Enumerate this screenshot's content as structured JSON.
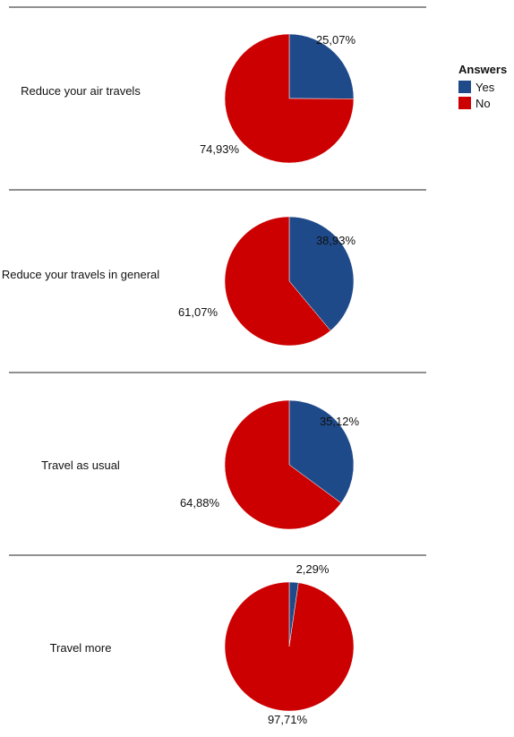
{
  "chart_data": {
    "type": "pie",
    "legend": {
      "title": "Answers",
      "position": "top-right",
      "entries": [
        {
          "label": "Yes",
          "color": "#1f4a8a"
        },
        {
          "label": "No",
          "color": "#cc0000"
        }
      ]
    },
    "charts": [
      {
        "question": "Reduce your air travels",
        "slices": [
          {
            "label": "Yes",
            "value": 25.07,
            "text": "25,07%"
          },
          {
            "label": "No",
            "value": 74.93,
            "text": "74,93%"
          }
        ]
      },
      {
        "question": "Reduce your travels in general",
        "slices": [
          {
            "label": "Yes",
            "value": 38.93,
            "text": "38,93%"
          },
          {
            "label": "No",
            "value": 61.07,
            "text": "61,07%"
          }
        ]
      },
      {
        "question": "Travel as usual",
        "slices": [
          {
            "label": "Yes",
            "value": 35.12,
            "text": "35,12%"
          },
          {
            "label": "No",
            "value": 64.88,
            "text": "64,88%"
          }
        ]
      },
      {
        "question": "Travel more",
        "slices": [
          {
            "label": "Yes",
            "value": 2.29,
            "text": "2,29%"
          },
          {
            "label": "No",
            "value": 97.71,
            "text": "97,71%"
          }
        ]
      }
    ]
  }
}
